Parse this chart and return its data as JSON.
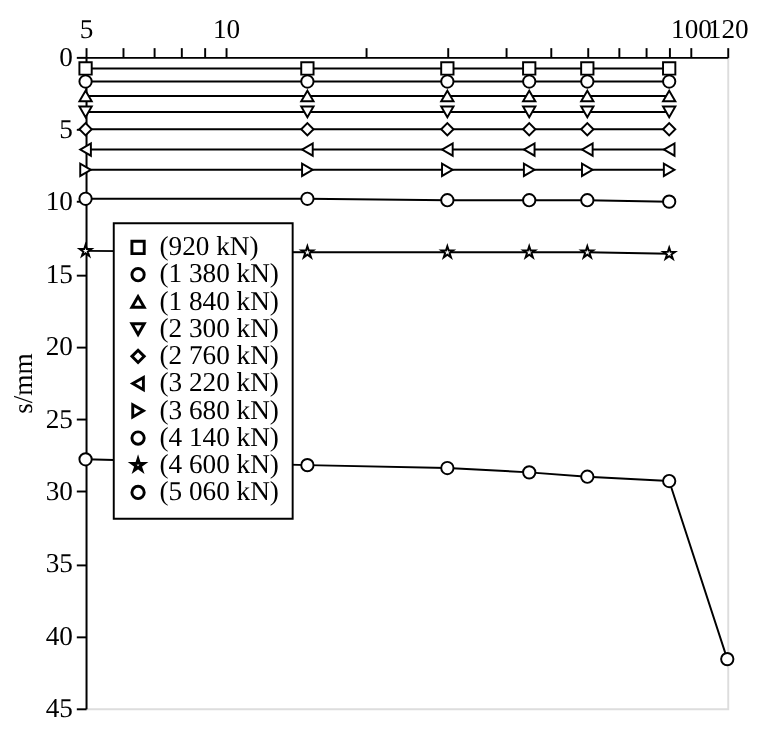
{
  "chart_data": {
    "type": "line",
    "ylabel": "s/mm",
    "xlim": [
      5,
      120
    ],
    "ylim": [
      45,
      0
    ],
    "log": "x",
    "grid": false,
    "legend": "top left",
    "line_style": "solid",
    "xticks": [
      5,
      {
        "value": 6,
        "label": null
      },
      {
        "value": 7,
        "label": null
      },
      {
        "value": 8,
        "label": null
      },
      {
        "value": 9,
        "label": null
      },
      10,
      {
        "value": 20,
        "label": null
      },
      {
        "value": 30,
        "label": null
      },
      {
        "value": 40,
        "label": null
      },
      {
        "value": 50,
        "label": null
      },
      {
        "value": 60,
        "label": null
      },
      {
        "value": 70,
        "label": null
      },
      {
        "value": 80,
        "label": null
      },
      {
        "value": 90,
        "label": null
      },
      100,
      120
    ],
    "yticks": [
      0,
      5,
      10,
      15,
      20,
      25,
      30,
      35,
      40,
      45
    ],
    "series": [
      {
        "name": "(920 kN)",
        "color": "#000000",
        "marker": "square",
        "x": [
          5,
          15,
          30,
          45,
          60,
          90
        ],
        "values": [
          0.8,
          0.8,
          0.8,
          0.8,
          0.8,
          0.8
        ]
      },
      {
        "name": "(1 380 kN)",
        "color": "#000000",
        "marker": "circle",
        "x": [
          5,
          15,
          30,
          45,
          60,
          90
        ],
        "values": [
          1.7,
          1.7,
          1.7,
          1.7,
          1.7,
          1.7
        ]
      },
      {
        "name": "(1 840 kN)",
        "color": "#000000",
        "marker": "triangle",
        "x": [
          5,
          15,
          30,
          45,
          60,
          90
        ],
        "values": [
          2.7,
          2.7,
          2.7,
          2.7,
          2.7,
          2.7
        ]
      },
      {
        "name": "(2 300 kN)",
        "color": "#000000",
        "marker": "triangle-down",
        "x": [
          5,
          15,
          30,
          45,
          60,
          90
        ],
        "values": [
          3.8,
          3.8,
          3.8,
          3.8,
          3.8,
          3.8
        ]
      },
      {
        "name": "(2 760 kN)",
        "color": "#000000",
        "marker": "diamond",
        "x": [
          5,
          15,
          30,
          45,
          60,
          90
        ],
        "values": [
          5.0,
          5.0,
          5.0,
          5.0,
          5.0,
          5.0
        ]
      },
      {
        "name": "(3 220 kN)",
        "color": "#000000",
        "marker": "triangle-left",
        "x": [
          5,
          15,
          30,
          45,
          60,
          90
        ],
        "values": [
          6.4,
          6.4,
          6.4,
          6.4,
          6.4,
          6.4
        ]
      },
      {
        "name": "(3 680 kN)",
        "color": "#000000",
        "marker": "triangle-right",
        "x": [
          5,
          15,
          30,
          45,
          60,
          90
        ],
        "values": [
          7.8,
          7.8,
          7.8,
          7.8,
          7.8,
          7.8
        ]
      },
      {
        "name": "(4 140 kN)",
        "color": "#000000",
        "marker": "circle",
        "x": [
          5,
          15,
          30,
          45,
          60,
          90
        ],
        "values": [
          9.8,
          9.8,
          9.9,
          9.9,
          9.9,
          10.0
        ]
      },
      {
        "name": "(4 600 kN)",
        "color": "#000000",
        "marker": "star",
        "x": [
          5,
          15,
          30,
          45,
          60,
          90
        ],
        "values": [
          13.4,
          13.5,
          13.5,
          13.5,
          13.5,
          13.6
        ]
      },
      {
        "name": "(5 060 kN)",
        "color": "#000000",
        "marker": "circle",
        "x": [
          5,
          15,
          30,
          45,
          60,
          90,
          120
        ],
        "values": [
          27.8,
          28.2,
          28.4,
          28.7,
          29.0,
          29.3,
          41.6
        ]
      }
    ]
  }
}
